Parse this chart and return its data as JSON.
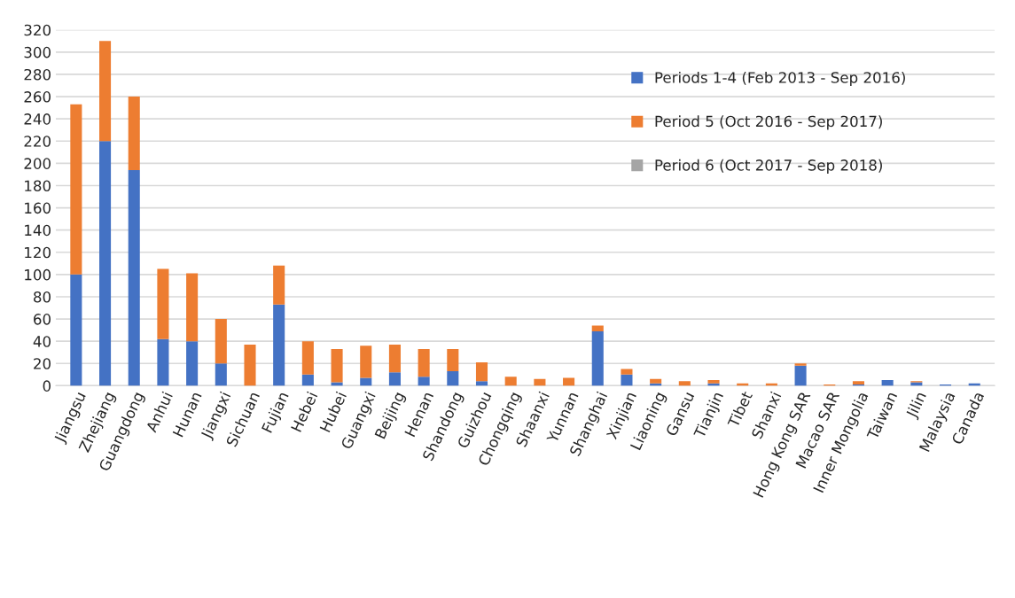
{
  "chart_data": {
    "type": "bar",
    "stacked": true,
    "categories": [
      "Jiangsu",
      "Zhejiang",
      "Guangdong",
      "Anhui",
      "Hunan",
      "Jiangxi",
      "Sichuan",
      "Fujian",
      "Hebei",
      "Hubei",
      "Guangxi",
      "Beijing",
      "Henan",
      "Shandong",
      "Guizhou",
      "Chongqing",
      "Shaanxi",
      "Yunnan",
      "Shanghai",
      "Xinjian",
      "Liaoning",
      "Gansu",
      "Tianjin",
      "Tibet",
      "Shanxi",
      "Hong Kong SAR",
      "Macao SAR",
      "Inner Mongolia",
      "Taiwan",
      "Jilin",
      "Malaysia",
      "Canada"
    ],
    "series": [
      {
        "name": "Periods 1-4 (Feb 2013 - Sep 2016)",
        "color": "#4472c4",
        "values": [
          100,
          220,
          194,
          42,
          40,
          20,
          null,
          73,
          10,
          3,
          7,
          12,
          8,
          13,
          4,
          null,
          null,
          null,
          49,
          10,
          2,
          null,
          2,
          null,
          null,
          18,
          null,
          1,
          5,
          3,
          1,
          2
        ]
      },
      {
        "name": "Period 5 (Oct 2016 - Sep 2017)",
        "color": "#ed7d31",
        "values": [
          153,
          90,
          66,
          63,
          61,
          40,
          37,
          35,
          30,
          30,
          29,
          25,
          25,
          20,
          17,
          8,
          6,
          7,
          5,
          5,
          4,
          4,
          3,
          2,
          2,
          2,
          1,
          3,
          null,
          1,
          null,
          null
        ]
      },
      {
        "name": "Period 6 (Oct 2017 - Sep 2018)",
        "color": "#a5a5a5",
        "values": [
          null,
          null,
          null,
          null,
          null,
          null,
          null,
          null,
          null,
          null,
          null,
          null,
          null,
          null,
          null,
          null,
          null,
          null,
          null,
          null,
          null,
          null,
          null,
          null,
          null,
          null,
          null,
          null,
          null,
          null,
          null,
          null
        ]
      }
    ],
    "ylim": [
      0,
      320
    ],
    "yticks": [
      0,
      20,
      40,
      60,
      80,
      100,
      120,
      140,
      160,
      180,
      200,
      220,
      240,
      260,
      280,
      300,
      320
    ],
    "grid": "y",
    "legend": "top right"
  }
}
